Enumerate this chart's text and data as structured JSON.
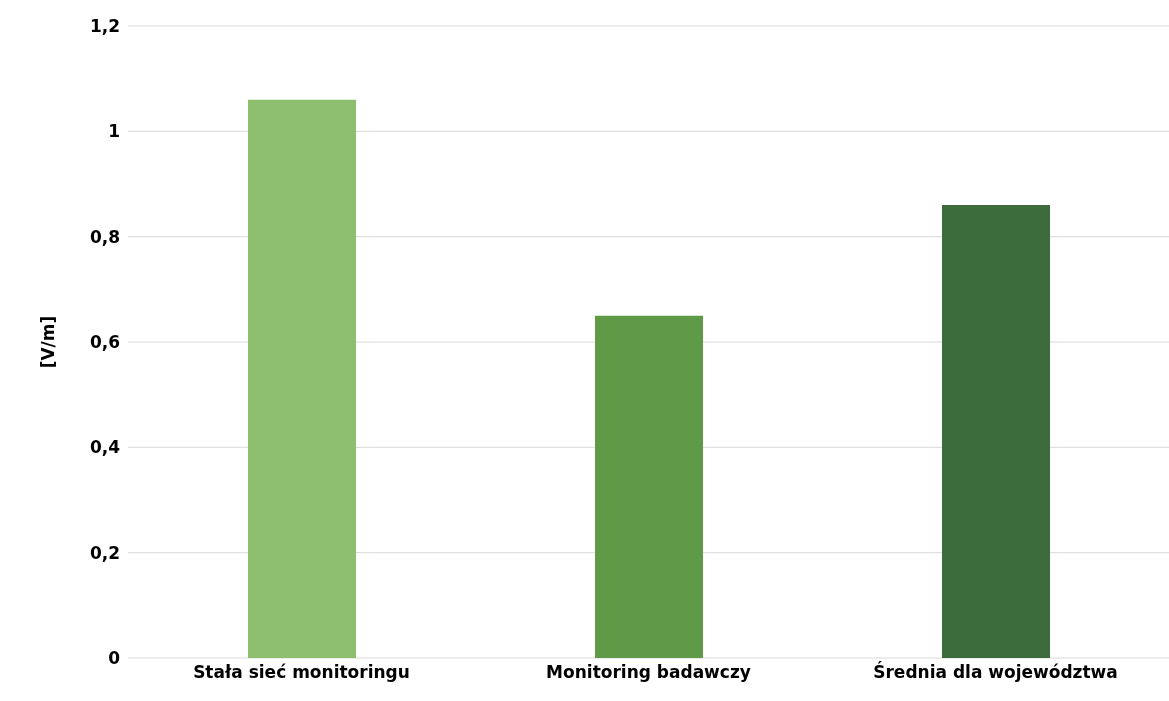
{
  "chart_data": {
    "type": "bar",
    "ylabel": "[V/m]",
    "categories": [
      "Stała sieć monitoringu",
      "Monitoring badawczy",
      "Średnia dla województwa"
    ],
    "values": [
      1.06,
      0.65,
      0.86
    ],
    "colors": [
      "#8dbf6e",
      "#5f9a47",
      "#3c6b3c"
    ],
    "ylim": [
      0,
      1.2
    ],
    "yticks": [
      {
        "value": 0,
        "label": "0"
      },
      {
        "value": 0.2,
        "label": "0,2"
      },
      {
        "value": 0.4,
        "label": "0,4"
      },
      {
        "value": 0.6,
        "label": "0,6"
      },
      {
        "value": 0.8,
        "label": "0,8"
      },
      {
        "value": 1,
        "label": "1"
      },
      {
        "value": 1.2,
        "label": "1,2"
      }
    ],
    "grid": "y"
  }
}
